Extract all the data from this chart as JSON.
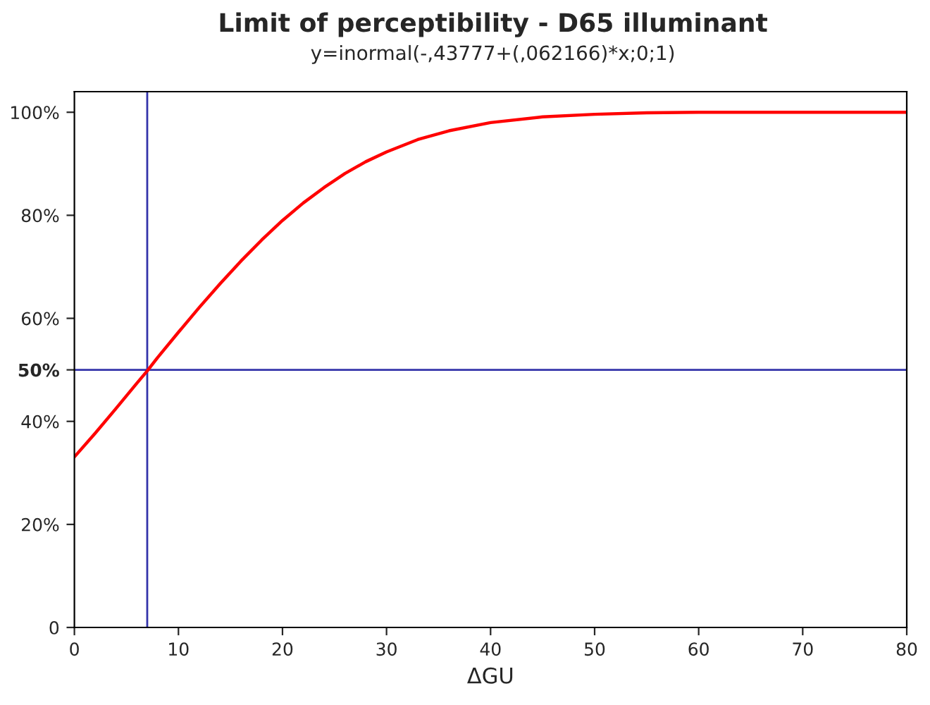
{
  "chart_data": {
    "type": "line",
    "title": "Limit of perceptibility - D65 illuminant",
    "subtitle": "y=inormal(-,43777+(,062166)*x;0;1)",
    "xlabel": "ΔGU",
    "x": [
      0,
      2,
      4,
      6,
      7,
      8,
      10,
      12,
      14,
      16,
      18,
      20,
      22,
      24,
      26,
      28,
      30,
      33,
      36,
      40,
      45,
      50,
      55,
      60,
      70,
      80
    ],
    "series": [
      {
        "color": "#ff0000",
        "values": [
          33.1,
          37.7,
          42.5,
          47.4,
          49.8,
          52.4,
          57.3,
          62.1,
          66.7,
          71.1,
          75.2,
          79.0,
          82.4,
          85.4,
          88.1,
          90.4,
          92.3,
          94.7,
          96.4,
          98.0,
          99.1,
          99.6,
          99.9,
          100.0,
          100.0,
          100.0
        ]
      }
    ],
    "xlim": [
      0,
      80
    ],
    "xticks": [
      0,
      10,
      20,
      30,
      40,
      50,
      60,
      70,
      80
    ],
    "ylim": [
      0,
      104
    ],
    "yticks": [
      {
        "value": 0,
        "label": "0"
      },
      {
        "value": 20,
        "label": "20%"
      },
      {
        "value": 40,
        "label": "40%"
      },
      {
        "value": 50,
        "label": "50%"
      },
      {
        "value": 60,
        "label": "60%"
      },
      {
        "value": 80,
        "label": "80%"
      },
      {
        "value": 100,
        "label": "100%"
      }
    ],
    "ref_lines": [
      {
        "axis": "x",
        "value": 7,
        "color": "#3333aa"
      },
      {
        "axis": "y",
        "value": 50,
        "color": "#3333aa"
      }
    ],
    "grid": false,
    "marker": "none",
    "line_style": "solid"
  }
}
